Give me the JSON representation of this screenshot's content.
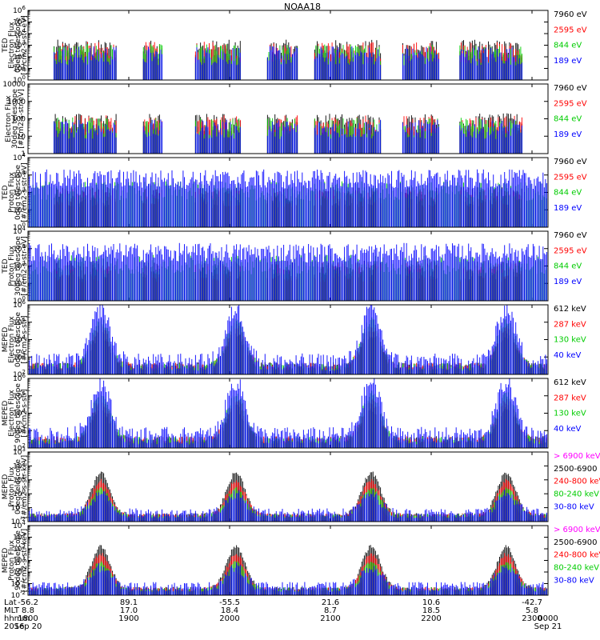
{
  "title": "NOAA18",
  "chart_data": [
    {
      "type": "line",
      "panel": 1,
      "ylabel": [
        "TED",
        "Electron Flux",
        "0deg telescope",
        "[#/cm2-s-str-eV]"
      ],
      "yticks": [
        "10^0",
        "10^1",
        "10^2",
        "10^3",
        "10^4",
        "10^5",
        "10^6"
      ],
      "ylim_log10": [
        0,
        6
      ],
      "series": [
        {
          "name": "7960 eV",
          "color": "#000000"
        },
        {
          "name": "2595 eV",
          "color": "#ff0000"
        },
        {
          "name": "844 eV",
          "color": "#00cc00"
        },
        {
          "name": "189 eV",
          "color": "#0000ff"
        }
      ]
    },
    {
      "type": "line",
      "panel": 2,
      "ylabel": [
        "Electron Flux",
        "30deg telescope",
        "[#/cm2-s-str-eV]"
      ],
      "yticks": [
        "1",
        "10",
        "100",
        "1000",
        "10000"
      ],
      "ylim_log10": [
        0,
        4
      ],
      "series": [
        {
          "name": "7960 eV",
          "color": "#000000"
        },
        {
          "name": "2595 eV",
          "color": "#ff0000"
        },
        {
          "name": "844 eV",
          "color": "#00cc00"
        },
        {
          "name": "189 eV",
          "color": "#0000ff"
        }
      ]
    },
    {
      "type": "line",
      "panel": 3,
      "ylabel": [
        "TED",
        "Proton Flux",
        "0deg telescope",
        "[#/cm2-s-str-eV]"
      ],
      "yticks": [
        "10^0",
        "10^1",
        "10^2",
        "10^3",
        "10^4"
      ],
      "ylim_log10": [
        0,
        4
      ],
      "series": [
        {
          "name": "7960 eV",
          "color": "#000000"
        },
        {
          "name": "2595 eV",
          "color": "#ff0000"
        },
        {
          "name": "844 eV",
          "color": "#00cc00"
        },
        {
          "name": "189 eV",
          "color": "#0000ff"
        }
      ]
    },
    {
      "type": "line",
      "panel": 4,
      "ylabel": [
        "TED",
        "Proton Flux",
        "30deg telescope",
        "[#/cm2-s-str-eV]"
      ],
      "yticks": [
        "10^0",
        "10^1",
        "10^2",
        "10^3",
        "10^4"
      ],
      "ylim_log10": [
        0,
        4
      ],
      "series": [
        {
          "name": "7960 eV",
          "color": "#000000"
        },
        {
          "name": "2595 eV",
          "color": "#ff0000"
        },
        {
          "name": "844 eV",
          "color": "#00cc00"
        },
        {
          "name": "189 eV",
          "color": "#0000ff"
        }
      ]
    },
    {
      "type": "line",
      "panel": 5,
      "ylabel": [
        "MEPED",
        "Electron Flux",
        "0deg telescope",
        "[#/cm2-s-str]"
      ],
      "yticks": [
        "10^2",
        "10^3",
        "10^4",
        "10^5",
        "10^6"
      ],
      "ylim_log10": [
        2,
        6
      ],
      "series": [
        {
          "name": "612 keV",
          "color": "#000000"
        },
        {
          "name": "287 keV",
          "color": "#ff0000"
        },
        {
          "name": "130 keV",
          "color": "#00cc00"
        },
        {
          "name": "40 keV",
          "color": "#0000ff"
        }
      ]
    },
    {
      "type": "line",
      "panel": 6,
      "ylabel": [
        "MEPED",
        "Electron Flux",
        "90deg telescope",
        "[#/cm2-s-str]"
      ],
      "yticks": [
        "10^2",
        "10^3",
        "10^4",
        "10^5",
        "10^6"
      ],
      "ylim_log10": [
        2,
        6
      ],
      "series": [
        {
          "name": "612 keV",
          "color": "#000000"
        },
        {
          "name": "287 keV",
          "color": "#ff0000"
        },
        {
          "name": "130 keV",
          "color": "#00cc00"
        },
        {
          "name": "40 keV",
          "color": "#0000ff"
        }
      ]
    },
    {
      "type": "line",
      "panel": 7,
      "ylabel": [
        "MEPED",
        "Proton Flux",
        "0deg telescope",
        "[#/cm2-s-str-keV]"
      ],
      "yticks": [
        "10^-2",
        "10^-1",
        "10^0",
        "10^1",
        "10^2",
        "10^3"
      ],
      "ylim_log10": [
        -2,
        3
      ],
      "series": [
        {
          "name": "> 6900 keV",
          "color": "#ff00ff"
        },
        {
          "name": "2500-6900",
          "color": "#000000"
        },
        {
          "name": "240-800 keV",
          "color": "#ff0000"
        },
        {
          "name": "80-240 keV",
          "color": "#00cc00"
        },
        {
          "name": "30-80 keV",
          "color": "#0000ff"
        }
      ]
    },
    {
      "type": "line",
      "panel": 8,
      "ylabel": [
        "MEPED",
        "Proton Flux",
        "90deg telescope",
        "[#/cm2-s-str-keV]"
      ],
      "yticks": [
        "10^-2",
        "10^-1",
        "10^0",
        "10^1",
        "10^2",
        "10^3",
        "10^4"
      ],
      "ylim_log10": [
        -2,
        4
      ],
      "series": [
        {
          "name": "> 6900 keV",
          "color": "#ff00ff"
        },
        {
          "name": "2500-6900",
          "color": "#000000"
        },
        {
          "name": "240-800 keV",
          "color": "#ff0000"
        },
        {
          "name": "80-240 keV",
          "color": "#00cc00"
        },
        {
          "name": "30-80 keV",
          "color": "#0000ff"
        }
      ]
    }
  ],
  "xaxis": {
    "row_labels": [
      "Lat",
      "MLT",
      "hhmm",
      "2016"
    ],
    "lat": [
      "-56.2",
      "89.1",
      "-55.5",
      "21.6",
      "10.6",
      "-42.7"
    ],
    "mlt": [
      "8.8",
      "17.0",
      "18.4",
      "8.7",
      "18.5",
      "5.8"
    ],
    "hhmm": [
      "1800",
      "1900",
      "2000",
      "2100",
      "2200",
      "2300",
      "0000"
    ],
    "dates": [
      "Sep 20",
      "Sep 21"
    ]
  }
}
